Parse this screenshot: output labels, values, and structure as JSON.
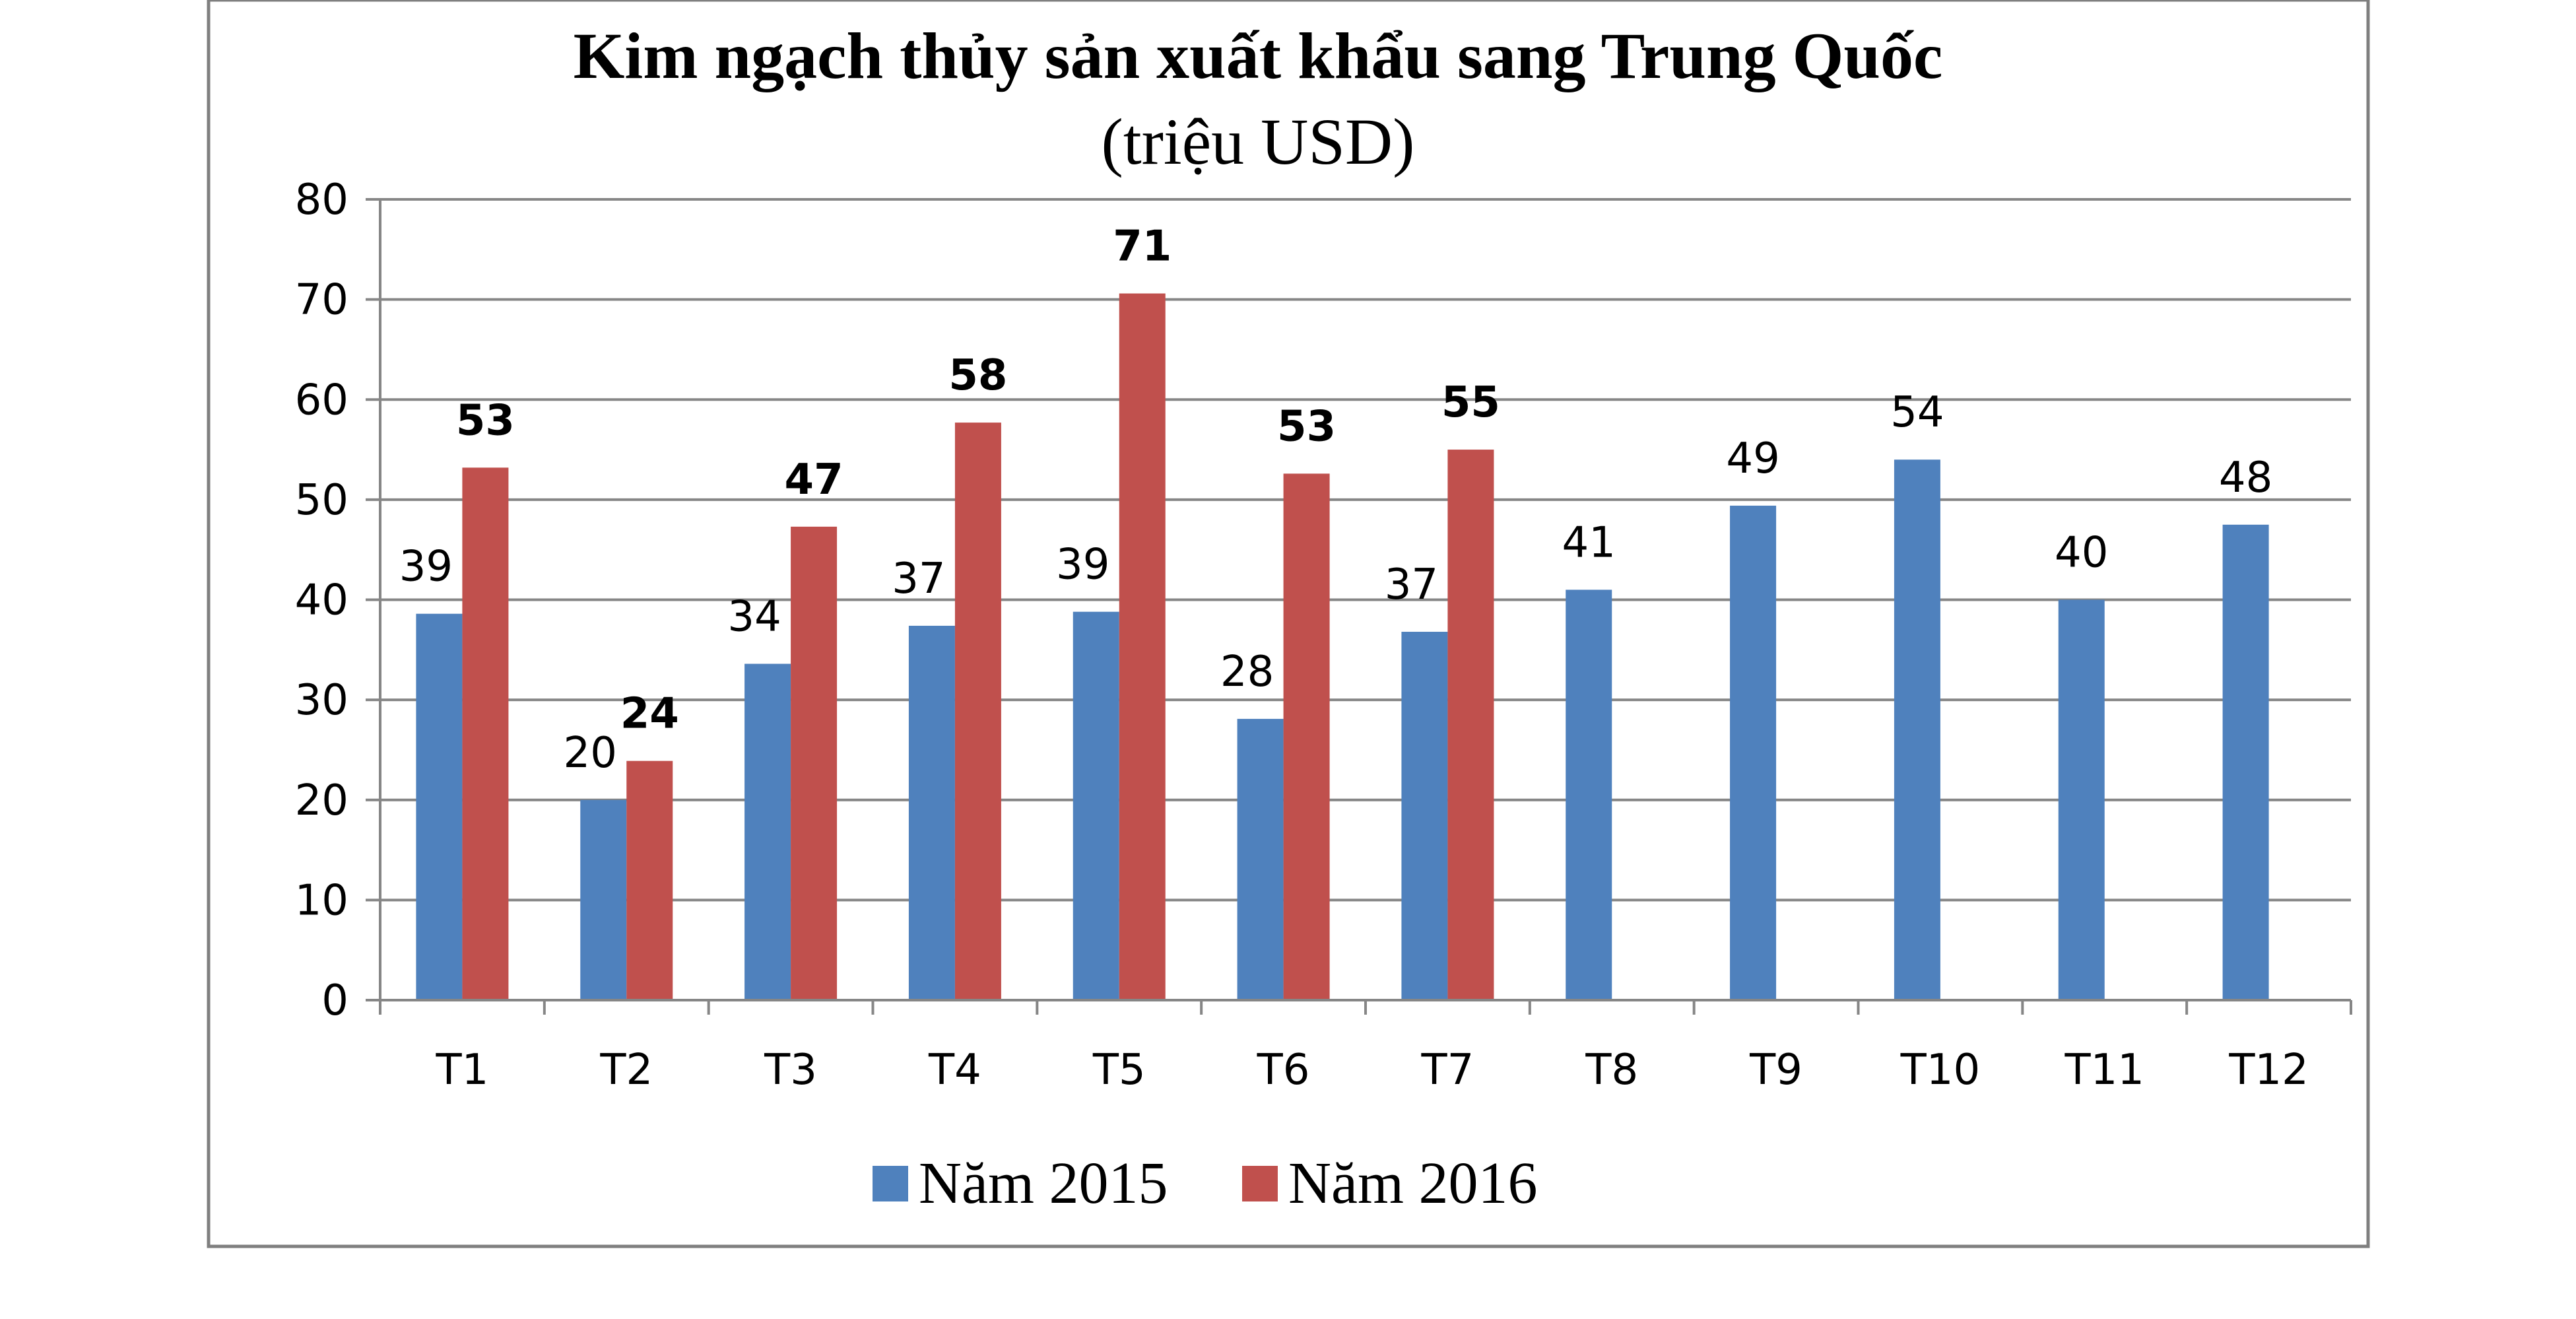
{
  "chart_data": {
    "type": "bar",
    "title": "Kim ngạch thủy sản xuất khẩu sang Trung Quốc",
    "subtitle": "(triệu USD)",
    "xlabel": "",
    "ylabel": "",
    "ylim": [
      0,
      80
    ],
    "yticks": [
      0,
      10,
      20,
      30,
      40,
      50,
      60,
      70,
      80
    ],
    "grid": true,
    "legend_position": "bottom",
    "categories": [
      "T1",
      "T2",
      "T3",
      "T4",
      "T5",
      "T6",
      "T7",
      "T8",
      "T9",
      "T10",
      "T11",
      "T12"
    ],
    "series": [
      {
        "name": "Năm 2015",
        "color": "#4F81BD",
        "values": [
          38.6,
          20.0,
          33.6,
          37.4,
          38.8,
          28.1,
          36.8,
          41.0,
          49.4,
          54.0,
          40.0,
          47.5
        ],
        "labels": [
          "39",
          "20",
          "34",
          "37",
          "39",
          "28",
          "37",
          "41",
          "49",
          "54",
          "40",
          "48"
        ]
      },
      {
        "name": "Năm 2016",
        "color": "#C0504D",
        "values": [
          53.2,
          23.9,
          47.3,
          57.7,
          70.6,
          52.6,
          55.0,
          null,
          null,
          null,
          null,
          null
        ],
        "labels": [
          "53",
          "24",
          "47",
          "58",
          "71",
          "53",
          "55",
          "",
          "",
          "",
          "",
          ""
        ]
      }
    ]
  },
  "colors": {
    "frame": "#7F7F7F",
    "grid": "#868686",
    "axis": "#868686"
  }
}
